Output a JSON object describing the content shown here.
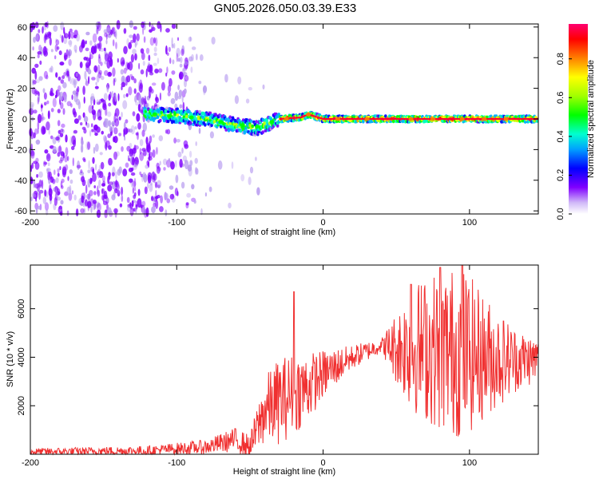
{
  "chart_data": [
    {
      "type": "heatmap",
      "title": "GN05.2026.050.03.39.E33",
      "xlabel": "Height of straight line (km)",
      "ylabel": "Frequency (Hz)",
      "xlim": [
        -200,
        147
      ],
      "ylim": [
        -62,
        62
      ],
      "xticks": [
        -200,
        -100,
        0,
        100
      ],
      "yticks": [
        60,
        40,
        20,
        0,
        -20,
        -40,
        -60
      ],
      "tick_labels_x": [
        "-200",
        "-100",
        "0",
        "100"
      ],
      "tick_labels_y": [
        "60",
        "40",
        "20",
        "0",
        "-20",
        "-40",
        "-60"
      ],
      "colorbar": {
        "label": "Normalized spectral amplitude",
        "range": [
          0,
          1
        ],
        "ticks": [
          "0.0",
          "0.2",
          "0.4",
          "0.6",
          "0.8"
        ],
        "colors": [
          "#ffffff",
          "#b89cf0",
          "#8000ff",
          "#0000ff",
          "#00b0ff",
          "#00ffc0",
          "#00ff00",
          "#c0ff00",
          "#ffff00",
          "#ff8000",
          "#ff0000",
          "#ff0080"
        ]
      },
      "ridge": [
        {
          "x": -120,
          "y": 3
        },
        {
          "x": -100,
          "y": 2
        },
        {
          "x": -80,
          "y": 0
        },
        {
          "x": -60,
          "y": -4
        },
        {
          "x": -45,
          "y": -6
        },
        {
          "x": -30,
          "y": 0
        },
        {
          "x": -15,
          "y": 1
        },
        {
          "x": -10,
          "y": 3
        },
        {
          "x": 0,
          "y": 0
        },
        {
          "x": 50,
          "y": 0
        },
        {
          "x": 100,
          "y": 0
        },
        {
          "x": 147,
          "y": 0
        }
      ]
    },
    {
      "type": "line",
      "xlabel": "Height of straight line (km)",
      "ylabel": "SNR (10 * v/v)",
      "xlim": [
        -200,
        147
      ],
      "ylim": [
        0,
        7800
      ],
      "xticks": [
        -200,
        -100,
        0,
        100
      ],
      "yticks": [
        2000,
        4000,
        6000
      ],
      "tick_labels_x": [
        "-200",
        "-100",
        "0",
        "100"
      ],
      "tick_labels_y": [
        "2000",
        "4000",
        "6000"
      ],
      "line_color": "#f03030",
      "envelope": [
        {
          "x": -200,
          "base": 100,
          "amp": 150
        },
        {
          "x": -120,
          "base": 150,
          "amp": 200
        },
        {
          "x": -80,
          "base": 300,
          "amp": 300
        },
        {
          "x": -60,
          "base": 600,
          "amp": 500
        },
        {
          "x": -50,
          "base": 300,
          "amp": 500
        },
        {
          "x": -40,
          "base": 1800,
          "amp": 1400
        },
        {
          "x": -30,
          "base": 2200,
          "amp": 1800
        },
        {
          "x": -20,
          "base": 2500,
          "amp": 1700
        },
        {
          "x": -10,
          "base": 2800,
          "amp": 1400
        },
        {
          "x": 0,
          "base": 3300,
          "amp": 1000
        },
        {
          "x": 20,
          "base": 4000,
          "amp": 500
        },
        {
          "x": 40,
          "base": 4500,
          "amp": 300
        },
        {
          "x": 50,
          "base": 4400,
          "amp": 1500
        },
        {
          "x": 60,
          "base": 4400,
          "amp": 2600
        },
        {
          "x": 80,
          "base": 4300,
          "amp": 3400
        },
        {
          "x": 95,
          "base": 4200,
          "amp": 3600
        },
        {
          "x": 110,
          "base": 4000,
          "amp": 2600
        },
        {
          "x": 130,
          "base": 3900,
          "amp": 1400
        },
        {
          "x": 147,
          "base": 3900,
          "amp": 900
        }
      ],
      "peaks": [
        {
          "x": -20,
          "y": 6700
        },
        {
          "x": 60,
          "y": 7000
        },
        {
          "x": 80,
          "y": 7700
        },
        {
          "x": 95,
          "y": 7800
        }
      ]
    }
  ]
}
